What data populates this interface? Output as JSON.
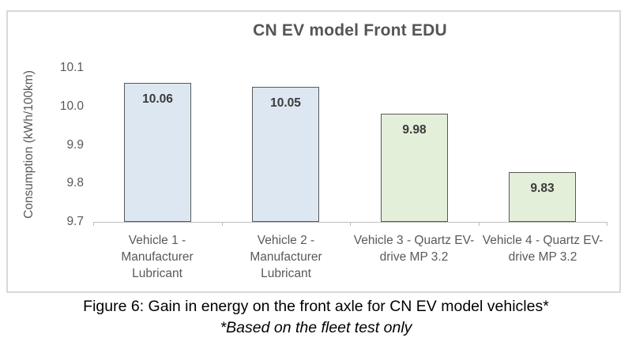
{
  "chart_data": {
    "type": "bar",
    "title": "CN EV model Front EDU",
    "xlabel": "",
    "ylabel": "Consumption (kWh/100km)",
    "ylim": [
      9.7,
      10.1
    ],
    "yticks": [
      "10.1",
      "10.0",
      "9.9",
      "9.8",
      "9.7"
    ],
    "grid": false,
    "legend": false,
    "categories": [
      "Vehicle 1 -\nManufacturer\nLubricant",
      "Vehicle 2 -\nManufacturer\nLubricant",
      "Vehicle 3 - Quartz EV-\ndrive MP 3.2",
      "Vehicle 4 - Quartz EV-\ndrive MP 3.2"
    ],
    "values": [
      10.06,
      10.05,
      9.98,
      9.83
    ],
    "value_labels": [
      "10.06",
      "10.05",
      "9.98",
      "9.83"
    ],
    "bar_fills": [
      "#dce7f2",
      "#dce7f2",
      "#e4efda",
      "#e4efda"
    ],
    "bar_border_color": "#595959",
    "axis_color": "#bfbfbf",
    "text_color": "#595959"
  },
  "caption": {
    "line1": "Figure 6: Gain in energy on the front axle for CN EV model vehicles*",
    "line2": "*Based on the fleet test only"
  }
}
